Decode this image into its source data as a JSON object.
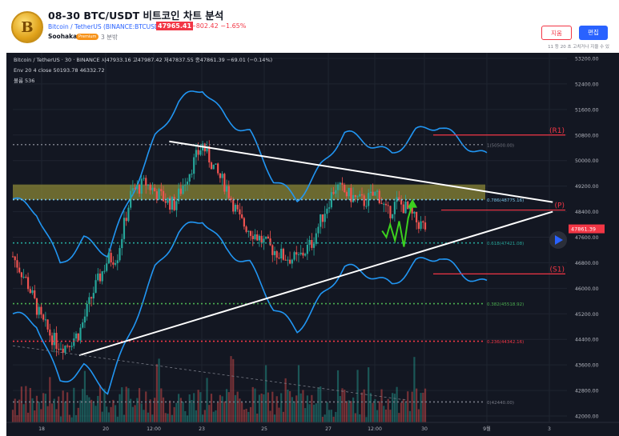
{
  "header": {
    "title": "08-30 BTC/USDT 비트코인 차트 분석",
    "symbol_line": "Bitcoin / TetherUS (BINANCE:BTCUSDT)",
    "price": "47965.41",
    "change": "−802.42  −1.65%",
    "author": "Soohakant",
    "author_badge": "Premium",
    "published": "3 분밖",
    "report_button": "지움",
    "edit_button": "편집",
    "edit_note": "11 등 20 초 고치거나 지울 수 있",
    "logo_glyph": "B",
    "logo_icon": "bitcoin-coin-icon"
  },
  "legend": {
    "ohlc": "Bitcoin / TetherUS · 30 · BINANCE  시47933.16  고47987.42  저47837.55  종47861.39  −69.01 (−0.14%)",
    "env": "Env 20 4 close  50193.78  46332.72",
    "volume": "볼륨  536"
  },
  "colors": {
    "background": "#131722",
    "grid": "#1f2430",
    "axis_text": "#b2b5be",
    "candle_up": "#26a69a",
    "candle_down": "#ef5350",
    "envelope": "#2196f3",
    "trendline": "#ffffff",
    "support_resistance": "#f23645",
    "arrow": "#3cd11e",
    "zone": "#8a8636"
  },
  "chart_data": {
    "type": "candlestick",
    "x_tick_labels": [
      "18",
      "20",
      "12:00",
      "23",
      "25",
      "27",
      "12:00",
      "30",
      "9월",
      "3"
    ],
    "y_tick_labels": [
      "53200.00",
      "52400.00",
      "51600.00",
      "50800.00",
      "50000.00",
      "49200.00",
      "48400.00",
      "47600.00",
      "46800.00",
      "46000.00",
      "45200.00",
      "44400.00",
      "43600.00",
      "42800.00",
      "42000.00"
    ],
    "ylim": [
      41800,
      53600
    ],
    "last_price": 47861.39,
    "last_price_label": "47861.39",
    "envelope_upper": [
      [
        0.0,
        48800
      ],
      [
        0.05,
        48300
      ],
      [
        0.1,
        46800
      ],
      [
        0.15,
        47600
      ],
      [
        0.2,
        47000
      ],
      [
        0.25,
        48900
      ],
      [
        0.3,
        50800
      ],
      [
        0.35,
        51800
      ],
      [
        0.4,
        52200
      ],
      [
        0.45,
        51400
      ],
      [
        0.5,
        50900
      ],
      [
        0.55,
        49300
      ],
      [
        0.6,
        48800
      ],
      [
        0.65,
        49900
      ],
      [
        0.7,
        50800
      ],
      [
        0.75,
        50500
      ],
      [
        0.8,
        50300
      ],
      [
        0.85,
        50900
      ],
      [
        0.9,
        51000
      ],
      [
        0.95,
        50600
      ],
      [
        1.0,
        50200
      ]
    ],
    "envelope_lower": [
      [
        0.0,
        45200
      ],
      [
        0.05,
        44800
      ],
      [
        0.1,
        43100
      ],
      [
        0.15,
        43600
      ],
      [
        0.2,
        42700
      ],
      [
        0.25,
        44700
      ],
      [
        0.3,
        46700
      ],
      [
        0.35,
        47700
      ],
      [
        0.4,
        48100
      ],
      [
        0.45,
        47300
      ],
      [
        0.5,
        46800
      ],
      [
        0.55,
        45300
      ],
      [
        0.6,
        44700
      ],
      [
        0.65,
        45800
      ],
      [
        0.7,
        46600
      ],
      [
        0.75,
        46400
      ],
      [
        0.8,
        46200
      ],
      [
        0.85,
        46800
      ],
      [
        0.9,
        46900
      ],
      [
        0.95,
        46500
      ],
      [
        1.0,
        46200
      ]
    ],
    "fib_levels": [
      {
        "ratio": "1",
        "label": "1(50500.00)",
        "price": 50500,
        "color": "#787b86"
      },
      {
        "ratio": "0.786",
        "label": "0.786(48775.16)",
        "price": 48775.16,
        "color": "#7dc6e8"
      },
      {
        "ratio": "0.618",
        "label": "0.618(47421.08)",
        "price": 47421.08,
        "color": "#26a69a"
      },
      {
        "ratio": "0.382",
        "label": "0.382(45518.92)",
        "price": 45518.92,
        "color": "#4caf50"
      },
      {
        "ratio": "0.236",
        "label": "0.236(44342.16)",
        "price": 44342.16,
        "color": "#f23645"
      },
      {
        "ratio": "0",
        "label": "0(42440.00)",
        "price": 42440,
        "color": "#787b86"
      }
    ],
    "zone": {
      "from": 48775,
      "to": 49250,
      "color": "#8a8636"
    },
    "sr_lines": [
      {
        "label": "(R1)",
        "price": 50800
      },
      {
        "label": "(P)",
        "price": 48450
      },
      {
        "label": "(S1)",
        "price": 46450
      }
    ],
    "trendline_upper": [
      [
        0.33,
        50600
      ],
      [
        0.97,
        48700
      ]
    ],
    "trendline_lower": [
      [
        0.14,
        43900
      ],
      [
        0.97,
        48400
      ]
    ],
    "dashed_trend": [
      [
        0.0,
        44200
      ],
      [
        0.83,
        42500
      ]
    ],
    "arrow_path": [
      [
        0.779,
        47800
      ],
      [
        0.788,
        47600
      ],
      [
        0.796,
        48000
      ],
      [
        0.806,
        47500
      ],
      [
        0.815,
        48100
      ],
      [
        0.825,
        47300
      ],
      [
        0.834,
        48200
      ],
      [
        0.843,
        48650
      ]
    ],
    "price_keypoints": [
      [
        0.0,
        47000
      ],
      [
        0.03,
        46200
      ],
      [
        0.06,
        45000
      ],
      [
        0.09,
        44300
      ],
      [
        0.11,
        44200
      ],
      [
        0.14,
        44600
      ],
      [
        0.17,
        45900
      ],
      [
        0.2,
        46900
      ],
      [
        0.22,
        47000
      ],
      [
        0.25,
        49000
      ],
      [
        0.28,
        49300
      ],
      [
        0.31,
        48900
      ],
      [
        0.34,
        48600
      ],
      [
        0.37,
        49600
      ],
      [
        0.4,
        50500
      ],
      [
        0.43,
        49600
      ],
      [
        0.45,
        49200
      ],
      [
        0.48,
        48100
      ],
      [
        0.51,
        47700
      ],
      [
        0.54,
        47300
      ],
      [
        0.57,
        47000
      ],
      [
        0.6,
        46900
      ],
      [
        0.63,
        47400
      ],
      [
        0.66,
        48500
      ],
      [
        0.68,
        49200
      ],
      [
        0.71,
        48900
      ],
      [
        0.74,
        48700
      ],
      [
        0.77,
        49000
      ],
      [
        0.79,
        48300
      ],
      [
        0.81,
        48700
      ],
      [
        0.83,
        48500
      ],
      [
        0.85,
        48100
      ],
      [
        0.87,
        47900
      ]
    ],
    "ohlc_info": {
      "open": 47933.16,
      "high": 47987.42,
      "low": 47837.55,
      "close": 47861.39,
      "change": -69.01,
      "change_pct": -0.14
    },
    "volume_last": 536
  }
}
